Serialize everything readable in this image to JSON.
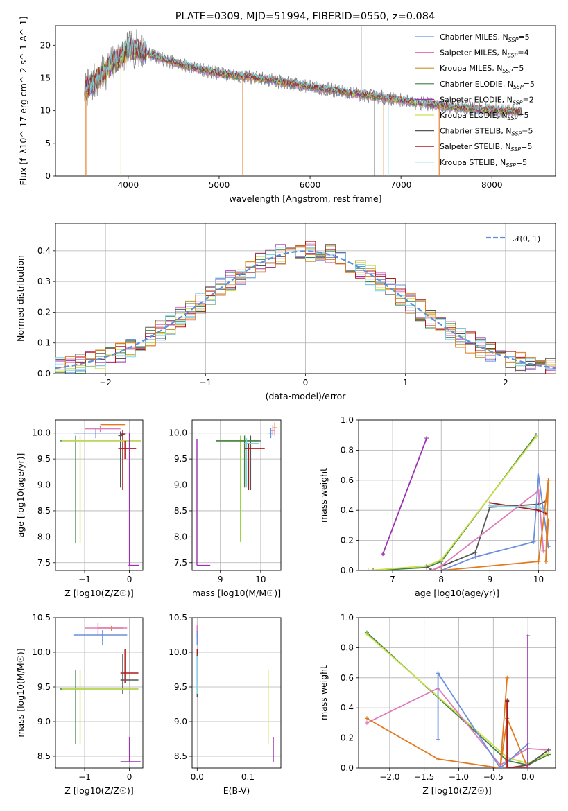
{
  "title": "PLATE=0309, MJD=51994, FIBERID=0550, z=0.084",
  "colors": {
    "chabrier_miles": "#6b8fdc",
    "salpeter_miles": "#e07bbb",
    "kroupa_miles": "#c8902a",
    "chabrier_elodie": "#3f7f3f",
    "salpeter_elodie": "#9b30b0",
    "kroupa_elodie": "#c6e04a",
    "chabrier_stelib": "#555555",
    "salpeter_stelib": "#b01818",
    "kroupa_stelib": "#7fd6e8",
    "orange": "#e07a1e",
    "lime": "#8ccf2a",
    "gauss": "#5b8fd6",
    "data_gray": "#808080"
  },
  "chart_data": [
    {
      "id": "spectrum",
      "type": "line",
      "xlabel": "wavelength [Angstrom, rest frame]",
      "ylabel": "Flux [f_λ10^-17 erg cm^-2 s^-1 A^-1]",
      "xlim": [
        3200,
        8700
      ],
      "ylim": [
        0,
        23
      ],
      "xticks": [
        4000,
        5000,
        6000,
        7000,
        8000
      ],
      "yticks": [
        0,
        5,
        10,
        15,
        20
      ],
      "grid": false,
      "legend_position": "top-right",
      "legend": [
        {
          "label": "Chabrier MILES, N",
          "sub": "SSP",
          "suffix": "=5",
          "color": "#6b8fdc"
        },
        {
          "label": "Salpeter MILES, N",
          "sub": "SSP",
          "suffix": "=4",
          "color": "#e07bbb"
        },
        {
          "label": "Kroupa MILES, N",
          "sub": "SSP",
          "suffix": "=5",
          "color": "#c8902a"
        },
        {
          "label": "Chabrier ELODIE, N",
          "sub": "SSP",
          "suffix": "=5",
          "color": "#3f7f3f"
        },
        {
          "label": "Salpeter ELODIE, N",
          "sub": "SSP",
          "suffix": "=2",
          "color": "#9b30b0"
        },
        {
          "label": "Kroupa ELODIE, N",
          "sub": "SSP",
          "suffix": "=5",
          "color": "#c6e04a"
        },
        {
          "label": "Chabrier STELIB, N",
          "sub": "SSP",
          "suffix": "=5",
          "color": "#555555"
        },
        {
          "label": "Salpeter STELIB, N",
          "sub": "SSP",
          "suffix": "=5",
          "color": "#b01818"
        },
        {
          "label": "Kroupa STELIB, N",
          "sub": "SSP",
          "suffix": "=5",
          "color": "#7fd6e8"
        }
      ],
      "continuum": {
        "x": [
          3520,
          3600,
          3700,
          3800,
          3900,
          4000,
          4100,
          4200,
          4400,
          4600,
          4800,
          5000,
          5200,
          5400,
          5600,
          5800,
          6000,
          6200,
          6400,
          6600,
          6800,
          7000,
          7200,
          7400,
          7600,
          7800,
          8000,
          8200,
          8300
        ],
        "y": [
          13.0,
          14.0,
          15.2,
          16.8,
          18.0,
          19.2,
          19.5,
          18.8,
          17.8,
          17.0,
          16.3,
          15.7,
          15.3,
          15.0,
          14.6,
          14.1,
          13.7,
          13.2,
          12.8,
          12.4,
          12.0,
          11.6,
          11.2,
          10.8,
          10.5,
          10.3,
          10.1,
          9.9,
          9.8
        ]
      },
      "sharp_drops": [
        {
          "x": 3535,
          "to": 0,
          "color": "#e07a1e"
        },
        {
          "x": 3920,
          "to": 0,
          "color": "#c6e04a"
        },
        {
          "x": 5260,
          "to": 0,
          "color": "#e07a1e"
        },
        {
          "x": 6710,
          "to": 0,
          "color": "#555555"
        },
        {
          "x": 6810,
          "to": 0,
          "color": "#e07a1e"
        },
        {
          "x": 6860,
          "to": 0,
          "color": "#7fd6e8"
        },
        {
          "x": 7420,
          "to": 0,
          "color": "#e07a1e"
        }
      ],
      "emission_spikes": [
        {
          "x": 6563,
          "to": 23
        },
        {
          "x": 6583,
          "to": 23
        }
      ]
    },
    {
      "id": "residuals",
      "type": "histogram",
      "xlabel": "(data-model)/error",
      "ylabel": "Normed distribution",
      "xlim": [
        -2.5,
        2.5
      ],
      "ylim": [
        0,
        0.49
      ],
      "xticks": [
        -2,
        -1,
        0,
        1,
        2
      ],
      "xticklabels": [
        "−2",
        "−1",
        "0",
        "1",
        "2"
      ],
      "yticks": [
        0.0,
        0.1,
        0.2,
        0.3,
        0.4
      ],
      "yticklabels": [
        "0.0",
        "0.1",
        "0.2",
        "0.3",
        "0.4"
      ],
      "grid": true,
      "bin_width": 0.1,
      "legend_position": "top-right",
      "legend": [
        {
          "label": "𝒩(0, 1)",
          "color": "#5b8fd6",
          "style": "dashed"
        }
      ],
      "gaussian": {
        "mean": 0,
        "sigma": 1
      }
    },
    {
      "id": "age_vs_Z",
      "type": "errorbar",
      "xlabel": "Z [log10(Z/Z☉)]",
      "ylabel": "age [log10(age/yr)]",
      "xlim": [
        -1.65,
        0.3
      ],
      "ylim": [
        7.35,
        10.25
      ],
      "xticks": [
        -1,
        0
      ],
      "xticklabels": [
        "−1",
        "0"
      ],
      "yticks": [
        7.5,
        8.0,
        8.5,
        9.0,
        9.5,
        10.0
      ],
      "yticklabels": [
        "7.5",
        "8.0",
        "8.5",
        "9.0",
        "9.5",
        "10.0"
      ],
      "grid": true,
      "points": [
        {
          "x": -0.35,
          "y": 10.16,
          "xlo": -0.65,
          "xhi": -0.1,
          "ylo": 10.15,
          "yhi": 10.16,
          "color": "#e07a1e"
        },
        {
          "x": -0.65,
          "y": 10.08,
          "xlo": -1.0,
          "xhi": -0.2,
          "ylo": 10.02,
          "yhi": 10.14,
          "color": "#e07bbb"
        },
        {
          "x": -0.75,
          "y": 10.0,
          "xlo": -1.25,
          "xhi": -0.05,
          "ylo": 9.9,
          "yhi": 10.1,
          "color": "#6b8fdc"
        },
        {
          "x": -0.15,
          "y": 9.98,
          "xlo": -0.2,
          "xhi": -0.1,
          "ylo": 8.9,
          "yhi": 10.05,
          "color": "#b01818"
        },
        {
          "x": -0.2,
          "y": 9.95,
          "xlo": -0.25,
          "xhi": -0.15,
          "ylo": 8.95,
          "yhi": 10.03,
          "color": "#555555"
        },
        {
          "x": -1.2,
          "y": 9.85,
          "xlo": -1.55,
          "xhi": 0.25,
          "ylo": 7.88,
          "yhi": 9.95,
          "color": "#3f7f3f"
        },
        {
          "x": -1.1,
          "y": 9.85,
          "xlo": -1.5,
          "xhi": 0.25,
          "ylo": 7.88,
          "yhi": 9.95,
          "color": "#c6e04a"
        },
        {
          "x": -0.1,
          "y": 9.7,
          "xlo": -0.25,
          "xhi": 0.15,
          "ylo": 9.5,
          "yhi": 9.85,
          "color": "#b01818"
        },
        {
          "x": 0.0,
          "y": 7.45,
          "xlo": -0.02,
          "xhi": 0.22,
          "ylo": 7.45,
          "yhi": 10.0,
          "color": "#9b30b0"
        }
      ]
    },
    {
      "id": "age_vs_mass",
      "type": "errorbar",
      "xlabel": "mass [log10(M/M☉)]",
      "ylabel": "",
      "xlim": [
        8.3,
        10.5
      ],
      "ylim": [
        7.35,
        10.25
      ],
      "xticks": [
        9,
        10
      ],
      "xticklabels": [
        "9",
        "10"
      ],
      "yticks": [
        7.5,
        8.0,
        8.5,
        9.0,
        9.5,
        10.0
      ],
      "yticklabels": [
        "7.5",
        "8.0",
        "8.5",
        "9.0",
        "9.5",
        "10.0"
      ],
      "grid": true,
      "points": [
        {
          "x": 10.35,
          "y": 10.1,
          "xlo": 10.3,
          "xhi": 10.4,
          "ylo": 9.95,
          "yhi": 10.2,
          "color": "#e07a1e"
        },
        {
          "x": 10.3,
          "y": 10.05,
          "xlo": 10.25,
          "xhi": 10.35,
          "ylo": 9.95,
          "yhi": 10.15,
          "color": "#e07bbb"
        },
        {
          "x": 10.25,
          "y": 10.0,
          "xlo": 10.2,
          "xhi": 10.3,
          "ylo": 9.9,
          "yhi": 10.1,
          "color": "#6b8fdc"
        },
        {
          "x": 9.75,
          "y": 9.85,
          "xlo": 8.9,
          "xhi": 10.0,
          "ylo": 8.9,
          "yhi": 9.95,
          "color": "#555555"
        },
        {
          "x": 9.5,
          "y": 9.85,
          "xlo": 8.95,
          "xhi": 9.95,
          "ylo": 7.9,
          "yhi": 9.95,
          "color": "#8ccf2a"
        },
        {
          "x": 9.6,
          "y": 9.85,
          "xlo": 8.9,
          "xhi": 9.95,
          "ylo": 8.95,
          "yhi": 9.95,
          "color": "#3f7f3f"
        },
        {
          "x": 9.65,
          "y": 9.8,
          "xlo": 9.6,
          "xhi": 9.95,
          "ylo": 8.95,
          "yhi": 9.9,
          "color": "#7fd6e8"
        },
        {
          "x": 9.7,
          "y": 9.7,
          "xlo": 9.6,
          "xhi": 10.1,
          "ylo": 8.9,
          "yhi": 9.8,
          "color": "#b01818"
        },
        {
          "x": 8.42,
          "y": 7.45,
          "xlo": 8.42,
          "xhi": 8.75,
          "ylo": 7.45,
          "yhi": 9.88,
          "color": "#9b30b0"
        }
      ]
    },
    {
      "id": "weight_vs_age",
      "type": "line",
      "xlabel": "age [log10(age/yr)]",
      "ylabel": "mass weight",
      "xlim": [
        6.3,
        10.35
      ],
      "ylim": [
        0,
        1.0
      ],
      "xticks": [
        7,
        8,
        9,
        10
      ],
      "xticklabels": [
        "7",
        "8",
        "9",
        "10"
      ],
      "yticks": [
        0.0,
        0.2,
        0.4,
        0.6,
        0.8,
        1.0
      ],
      "yticklabels": [
        "0.0",
        "0.2",
        "0.4",
        "0.6",
        "0.8",
        "1.0"
      ],
      "grid": true,
      "series": [
        {
          "color": "#9b30b0",
          "x": [
            6.8,
            7.7
          ],
          "y": [
            0.11,
            0.88
          ]
        },
        {
          "color": "#3f7f3f",
          "x": [
            6.6,
            7.7,
            8.0,
            9.95
          ],
          "y": [
            0.0,
            0.02,
            0.06,
            0.9
          ]
        },
        {
          "color": "#c6e04a",
          "x": [
            6.5,
            7.7,
            8.0,
            9.95
          ],
          "y": [
            0.0,
            0.03,
            0.07,
            0.89
          ]
        },
        {
          "color": "#555555",
          "x": [
            7.7,
            7.8,
            8.7,
            9.0,
            10.0,
            10.15
          ],
          "y": [
            0.03,
            0.0,
            0.12,
            0.42,
            0.44,
            0.46
          ]
        },
        {
          "color": "#6b8fdc",
          "x": [
            7.75,
            8.0,
            8.7,
            9.9,
            10.0,
            10.2
          ],
          "y": [
            0.0,
            0.0,
            0.09,
            0.19,
            0.63,
            0.16
          ]
        },
        {
          "color": "#e07bbb",
          "x": [
            7.8,
            8.0,
            10.0,
            10.1
          ],
          "y": [
            0.0,
            0.03,
            0.53,
            0.13
          ]
        },
        {
          "color": "#b01818",
          "x": [
            9.0,
            10.0,
            10.15
          ],
          "y": [
            0.45,
            0.4,
            0.38
          ]
        },
        {
          "color": "#7fd6e8",
          "x": [
            9.0,
            10.0,
            10.15
          ],
          "y": [
            0.43,
            0.42,
            0.4
          ]
        },
        {
          "color": "#e07a1e",
          "x": [
            7.7,
            8.0,
            10.0,
            10.2,
            10.15,
            10.2
          ],
          "y": [
            0.0,
            0.0,
            0.06,
            0.6,
            0.06,
            0.33
          ]
        }
      ]
    },
    {
      "id": "mass_vs_Z",
      "type": "errorbar",
      "xlabel": "Z [log10(Z/Z☉)]",
      "ylabel": "mass [log10(M/M☉)]",
      "xlim": [
        -1.65,
        0.3
      ],
      "ylim": [
        8.33,
        10.5
      ],
      "xticks": [
        -1,
        0
      ],
      "xticklabels": [
        "−1",
        "0"
      ],
      "yticks": [
        8.5,
        9.0,
        9.5,
        10.0,
        10.5
      ],
      "yticklabels": [
        "8.5",
        "9.0",
        "9.5",
        "10.0",
        "10.5"
      ],
      "grid": true,
      "points": [
        {
          "x": -0.4,
          "y": 10.35,
          "xlo": -0.7,
          "xhi": -0.15,
          "ylo": 10.3,
          "yhi": 10.38,
          "color": "#e07a1e"
        },
        {
          "x": -0.7,
          "y": 10.35,
          "xlo": -1.0,
          "xhi": -0.05,
          "ylo": 10.25,
          "yhi": 10.42,
          "color": "#e07bbb"
        },
        {
          "x": -0.6,
          "y": 10.25,
          "xlo": -1.25,
          "xhi": -0.05,
          "ylo": 10.1,
          "yhi": 10.32,
          "color": "#6b8fdc"
        },
        {
          "x": -0.1,
          "y": 9.7,
          "xlo": -0.2,
          "xhi": 0.2,
          "ylo": 9.55,
          "yhi": 10.05,
          "color": "#b01818"
        },
        {
          "x": -0.15,
          "y": 9.6,
          "xlo": -0.2,
          "xhi": 0.2,
          "ylo": 9.4,
          "yhi": 9.98,
          "color": "#555555"
        },
        {
          "x": -1.2,
          "y": 9.47,
          "xlo": -1.55,
          "xhi": 0.2,
          "ylo": 8.68,
          "yhi": 9.75,
          "color": "#3f7f3f"
        },
        {
          "x": -1.1,
          "y": 9.47,
          "xlo": -1.5,
          "xhi": 0.2,
          "ylo": 8.68,
          "yhi": 9.75,
          "color": "#c6e04a"
        },
        {
          "x": 0.0,
          "y": 8.42,
          "xlo": -0.2,
          "xhi": 0.25,
          "ylo": 8.42,
          "yhi": 8.78,
          "color": "#9b30b0"
        }
      ]
    },
    {
      "id": "mass_vs_ebv",
      "type": "errorbar",
      "xlabel": "E(B-V)",
      "ylabel": "",
      "xlim": [
        -0.01,
        0.165
      ],
      "ylim": [
        8.33,
        10.5
      ],
      "xticks": [
        0.0,
        0.1
      ],
      "xticklabels": [
        "0.0",
        "0.1"
      ],
      "yticks": [
        8.5,
        9.0,
        9.5,
        10.0,
        10.5
      ],
      "yticklabels": [
        "8.5",
        "9.0",
        "9.5",
        "10.0",
        "10.5"
      ],
      "grid": true,
      "points": [
        {
          "x": 0.0,
          "y": 10.3,
          "xlo": 0.0,
          "xhi": 0.0,
          "ylo": 10.2,
          "yhi": 10.38,
          "color": "#e07a1e"
        },
        {
          "x": 0.0,
          "y": 10.3,
          "xlo": 0.0,
          "xhi": 0.0,
          "ylo": 10.22,
          "yhi": 10.4,
          "color": "#e07bbb"
        },
        {
          "x": 0.0,
          "y": 10.2,
          "xlo": 0.0,
          "xhi": 0.0,
          "ylo": 10.1,
          "yhi": 10.3,
          "color": "#6b8fdc"
        },
        {
          "x": 0.0,
          "y": 9.8,
          "xlo": 0.0,
          "xhi": 0.0,
          "ylo": 9.6,
          "yhi": 10.05,
          "color": "#b01818"
        },
        {
          "x": 0.0,
          "y": 9.6,
          "xlo": 0.0,
          "xhi": 0.0,
          "ylo": 9.35,
          "yhi": 9.98,
          "color": "#555555"
        },
        {
          "x": 0.0,
          "y": 9.6,
          "xlo": 0.0,
          "xhi": 0.0,
          "ylo": 9.4,
          "yhi": 9.95,
          "color": "#7fd6e8"
        },
        {
          "x": 0.14,
          "y": 9.47,
          "xlo": 0.14,
          "xhi": 0.14,
          "ylo": 8.68,
          "yhi": 9.75,
          "color": "#c6e04a"
        },
        {
          "x": 0.15,
          "y": 8.6,
          "xlo": 0.15,
          "xhi": 0.15,
          "ylo": 8.42,
          "yhi": 8.78,
          "color": "#9b30b0"
        }
      ]
    },
    {
      "id": "weight_vs_Z",
      "type": "line",
      "xlabel": "Z [log10(Z/Z☉)]",
      "ylabel": "mass weight",
      "xlim": [
        -2.45,
        0.4
      ],
      "ylim": [
        0,
        1.0
      ],
      "xticks": [
        -2.0,
        -1.5,
        -1.0,
        -0.5,
        0.0
      ],
      "xticklabels": [
        "−2.0",
        "−1.5",
        "−1.0",
        "−0.5",
        "0.0"
      ],
      "yticks": [
        0.0,
        0.2,
        0.4,
        0.6,
        0.8,
        1.0
      ],
      "yticklabels": [
        "0.0",
        "0.2",
        "0.4",
        "0.6",
        "0.8",
        "1.0"
      ],
      "grid": true,
      "series": [
        {
          "color": "#3f7f3f",
          "x": [
            -2.33,
            -0.3,
            0.0,
            0.3
          ],
          "y": [
            0.9,
            0.05,
            0.02,
            0.09
          ]
        },
        {
          "color": "#c6e04a",
          "x": [
            -2.33,
            -0.3,
            0.0,
            0.3
          ],
          "y": [
            0.89,
            0.07,
            0.03,
            0.1
          ]
        },
        {
          "color": "#e07bbb",
          "x": [
            -2.33,
            -1.3,
            -0.4,
            0.0,
            0.3
          ],
          "y": [
            0.3,
            0.53,
            0.02,
            0.13,
            0.12
          ]
        },
        {
          "color": "#e07a1e",
          "x": [
            -2.33,
            -1.3,
            -0.4,
            -0.3,
            -0.4,
            -0.3,
            0.0
          ],
          "y": [
            0.33,
            0.06,
            0.0,
            0.6,
            0.0,
            0.33,
            0.0
          ]
        },
        {
          "color": "#6b8fdc",
          "x": [
            -1.3,
            -1.3,
            -0.4,
            0.0,
            0.0
          ],
          "y": [
            0.19,
            0.63,
            0.0,
            0.16,
            0.0
          ]
        },
        {
          "color": "#555555",
          "x": [
            -0.3,
            -0.3,
            0.0,
            0.3
          ],
          "y": [
            0.45,
            0.0,
            0.02,
            0.12
          ]
        },
        {
          "color": "#b01818",
          "x": [
            -0.3,
            -0.3,
            0.0
          ],
          "y": [
            0.44,
            0.0,
            0.0
          ]
        },
        {
          "color": "#9b30b0",
          "x": [
            0.0,
            0.0
          ],
          "y": [
            0.88,
            0.0
          ]
        }
      ]
    }
  ]
}
